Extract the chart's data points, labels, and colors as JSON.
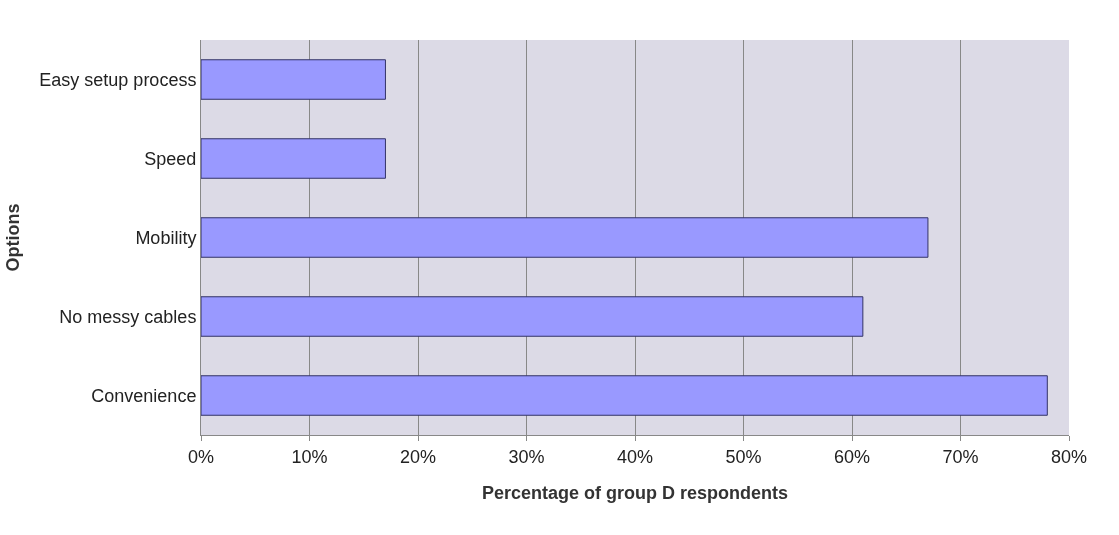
{
  "chart_data": {
    "type": "bar",
    "orientation": "horizontal",
    "xlabel": "Percentage of group D respondents",
    "ylabel": "Options",
    "categories": [
      "Easy setup process",
      "Speed",
      "Mobility",
      "No messy cables",
      "Convenience"
    ],
    "values": [
      17,
      17,
      67,
      61,
      78
    ],
    "color": "#9999ff",
    "xlim": [
      0,
      80
    ],
    "xticks": [
      {
        "value": 0,
        "label": "0%"
      },
      {
        "value": 10,
        "label": "10%"
      },
      {
        "value": 20,
        "label": "20%"
      },
      {
        "value": 30,
        "label": "30%"
      },
      {
        "value": 40,
        "label": "40%"
      },
      {
        "value": 50,
        "label": "50%"
      },
      {
        "value": 60,
        "label": "60%"
      },
      {
        "value": 70,
        "label": "70%"
      },
      {
        "value": 80,
        "label": "80%"
      }
    ],
    "grid": "x"
  }
}
